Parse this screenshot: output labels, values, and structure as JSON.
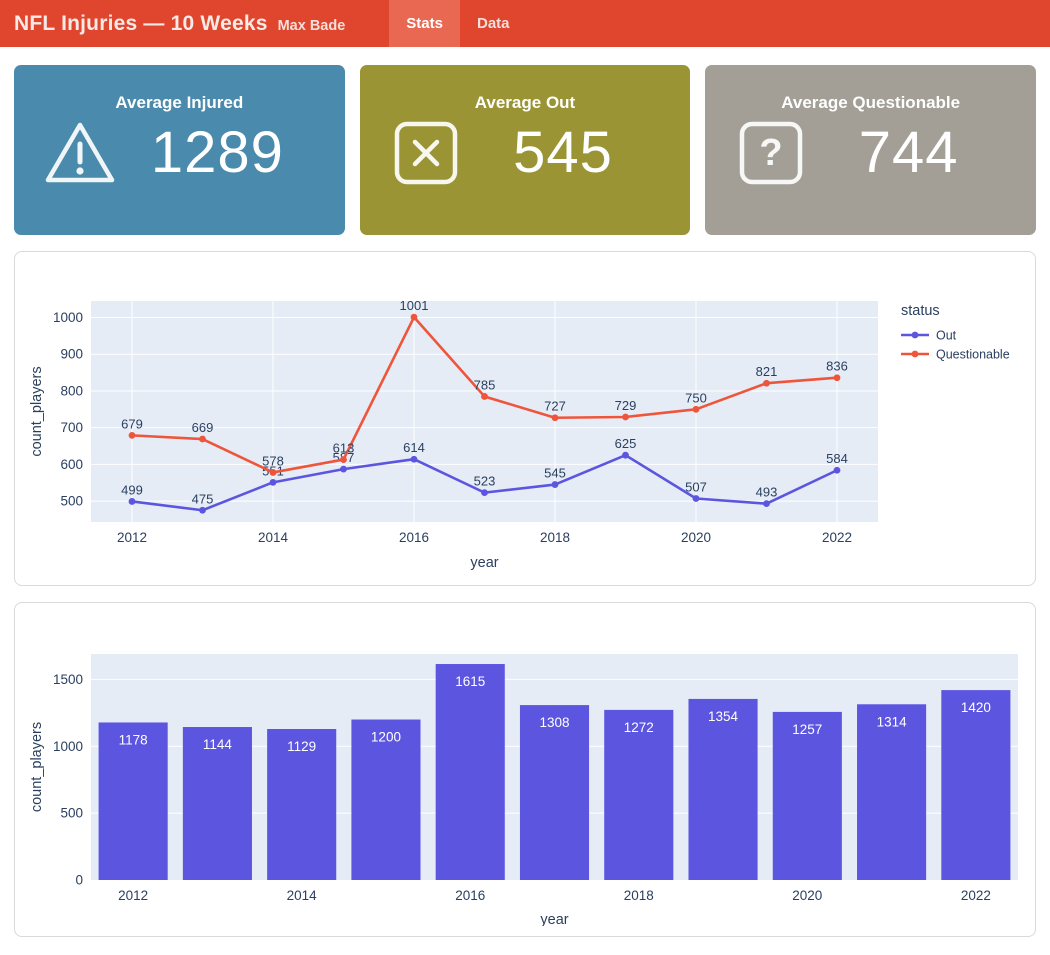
{
  "header": {
    "title": "NFL Injuries — 10 Weeks",
    "subtitle": "Max Bade",
    "bg_color": "#E0462D",
    "active_tab_color": "#E96851",
    "tabs": [
      {
        "label": "Stats",
        "active": true
      },
      {
        "label": "Data",
        "active": false
      }
    ]
  },
  "cards": [
    {
      "title": "Average Injured",
      "value": "1289",
      "color": "#4A8AAC",
      "icon": "warning-triangle-icon"
    },
    {
      "title": "Average Out",
      "value": "545",
      "color": "#9A9434",
      "icon": "x-square-icon"
    },
    {
      "title": "Average Questionable",
      "value": "744",
      "color": "#A39E96",
      "icon": "question-square-icon"
    }
  ],
  "chart_data": [
    {
      "type": "line",
      "x": [
        2012,
        2013,
        2014,
        2015,
        2016,
        2017,
        2018,
        2019,
        2020,
        2021,
        2022
      ],
      "series": [
        {
          "name": "Out",
          "color": "#5C55DF",
          "values": [
            499,
            475,
            551,
            587,
            614,
            523,
            545,
            625,
            507,
            493,
            584
          ]
        },
        {
          "name": "Questionable",
          "color": "#EF553B",
          "values": [
            679,
            669,
            578,
            613,
            1001,
            785,
            727,
            729,
            750,
            821,
            836
          ]
        }
      ],
      "xlabel": "year",
      "ylabel": "count_players",
      "legend_title": "status",
      "legend_position": "right",
      "xticks": [
        2012,
        2014,
        2016,
        2018,
        2020,
        2022
      ],
      "yticks": [
        500,
        600,
        700,
        800,
        900,
        1000
      ],
      "ylim": [
        443,
        1045
      ],
      "grid": true,
      "plot_bg": "#E5ECF6",
      "text_color": "#2A3F5F"
    },
    {
      "type": "bar",
      "categories": [
        2012,
        2013,
        2014,
        2015,
        2016,
        2017,
        2018,
        2019,
        2020,
        2021,
        2022
      ],
      "values": [
        1178,
        1144,
        1129,
        1200,
        1615,
        1308,
        1272,
        1354,
        1257,
        1314,
        1420
      ],
      "bar_color": "#5C55DF",
      "bar_label_color": "#ffffff",
      "xlabel": "year",
      "ylabel": "count_players",
      "xticks": [
        2012,
        2014,
        2016,
        2018,
        2020,
        2022
      ],
      "yticks": [
        0,
        500,
        1000,
        1500
      ],
      "ylim": [
        0,
        1690
      ],
      "grid": true,
      "plot_bg": "#E5ECF6",
      "text_color": "#2A3F5F"
    }
  ]
}
